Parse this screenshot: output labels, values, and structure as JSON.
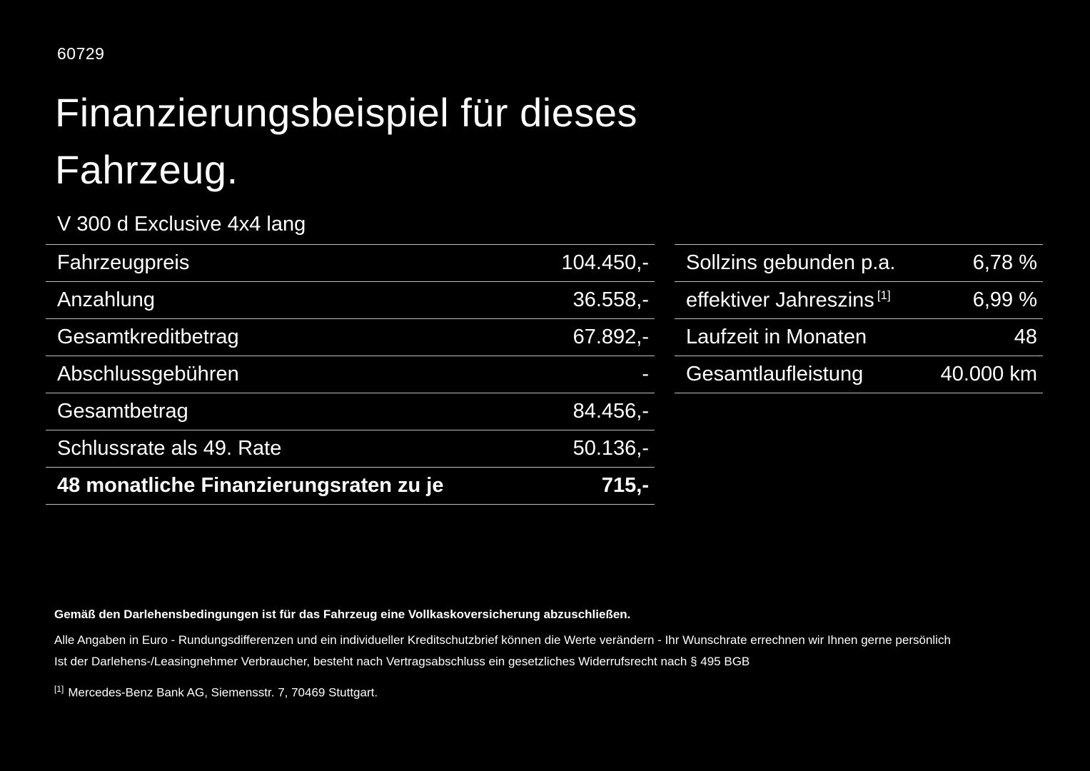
{
  "page": {
    "ref_number": "60729",
    "title_line1": "Finanzierungsbeispiel für dieses",
    "title_line2": "Fahrzeug.",
    "vehicle_name": "V 300 d Exclusive 4x4 lang"
  },
  "left_table": {
    "rows": [
      {
        "label": "Fahrzeugpreis",
        "value": "104.450,-"
      },
      {
        "label": "Anzahlung",
        "value": "36.558,-"
      },
      {
        "label": "Gesamtkreditbetrag",
        "value": "67.892,-"
      },
      {
        "label": "Abschlussgebühren",
        "value": "-"
      },
      {
        "label": "Gesamtbetrag",
        "value": "84.456,-"
      },
      {
        "label": "Schlussrate als 49. Rate",
        "value": "50.136,-"
      },
      {
        "label": "48 monatliche Finanzierungsraten zu je",
        "value": "715,-"
      }
    ]
  },
  "right_table": {
    "rows": [
      {
        "label": "Sollzins gebunden p.a.",
        "value": "6,78 %"
      },
      {
        "label": "effektiver Jahreszins",
        "superscript": "[1]",
        "value": "6,99 %"
      },
      {
        "label": "Laufzeit in Monaten",
        "value": "48"
      },
      {
        "label": "Gesamtlaufleistung",
        "value": "40.000 km"
      }
    ]
  },
  "footnotes": {
    "insurance_note": "Gemäß den Darlehensbedingungen ist für das Fahrzeug eine Vollkaskoversicherung abzuschließen.",
    "euro_note": "Alle Angaben in Euro - Rundungsdifferenzen und ein individueller Kreditschutzbrief können die Werte verändern - Ihr Wunschrate errechnen wir Ihnen gerne persönlich",
    "withdrawal_note": "Ist der Darlehens-/Leasingnehmer Verbraucher, besteht nach Vertragsabschluss ein gesetzliches Widerrufsrecht nach § 495 BGB",
    "bank_marker": "[1]",
    "bank_note": "Mercedes-Benz Bank AG, Siemensstr. 7, 70469 Stuttgart."
  },
  "colors": {
    "background": "#000000",
    "text": "#ffffff",
    "divider": "#c0c0c0"
  }
}
